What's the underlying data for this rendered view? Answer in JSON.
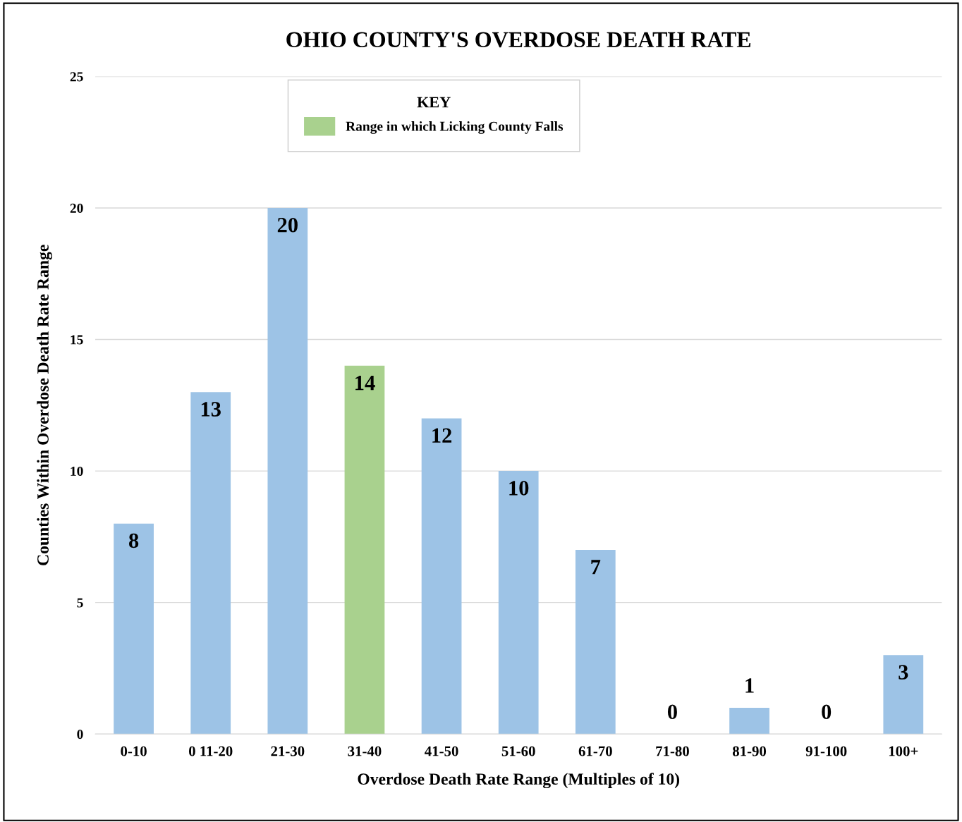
{
  "chart_data": {
    "type": "bar",
    "title": "OHIO COUNTY'S OVERDOSE DEATH RATE",
    "xlabel": "Overdose Death Rate Range (Multiples of 10)",
    "ylabel": "Counties Within Overdose Death Rate Range",
    "categories": [
      "0-10",
      "0 11-20",
      "21-30",
      "31-40",
      "41-50",
      "51-60",
      "61-70",
      "71-80",
      "81-90",
      "91-100",
      "100+"
    ],
    "series": [
      {
        "color": "#9dc3e6",
        "values": [
          8,
          13,
          20,
          null,
          12,
          10,
          7,
          0,
          1,
          0,
          3
        ]
      },
      {
        "name": "Range in which Licking County Falls",
        "color": "#a9d18e",
        "values": [
          null,
          null,
          null,
          14,
          null,
          null,
          null,
          null,
          null,
          null,
          null
        ]
      }
    ],
    "legend_title": "KEY",
    "legend": "top",
    "ylim": [
      0,
      25
    ],
    "yticks": [
      0,
      5,
      10,
      15,
      20,
      25
    ],
    "grid": "y",
    "data_labels": true
  }
}
